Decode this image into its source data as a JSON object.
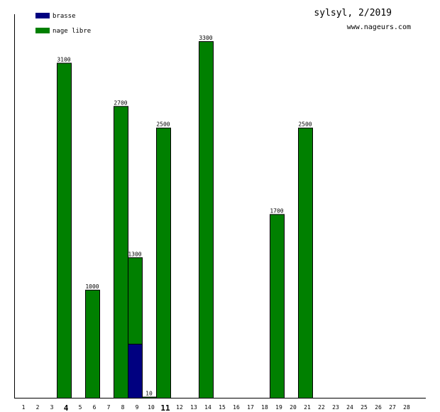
{
  "chart_data": {
    "type": "bar",
    "title": "sylsyl, 2/2019",
    "subtitle": "www.nageurs.com",
    "legend_position": "top-left",
    "categories": [
      "1",
      "2",
      "3",
      "4",
      "5",
      "6",
      "7",
      "8",
      "9",
      "10",
      "11",
      "12",
      "13",
      "14",
      "15",
      "16",
      "17",
      "18",
      "19",
      "20",
      "21",
      "22",
      "23",
      "24",
      "25",
      "26",
      "27",
      "28"
    ],
    "emphasized_categories": [
      "4",
      "11"
    ],
    "ylim": [
      0,
      3550
    ],
    "grid": false,
    "series": [
      {
        "name": "brasse",
        "color": "#000080",
        "values": [
          0,
          0,
          0,
          0,
          0,
          0,
          0,
          0,
          500,
          0,
          0,
          0,
          0,
          0,
          0,
          0,
          0,
          0,
          0,
          0,
          0,
          0,
          0,
          0,
          0,
          0,
          0,
          0
        ]
      },
      {
        "name": "nage libre",
        "color": "#008000",
        "values": [
          0,
          0,
          0,
          3100,
          0,
          1000,
          0,
          2700,
          800,
          10,
          2500,
          0,
          0,
          3300,
          0,
          0,
          0,
          0,
          1700,
          0,
          2500,
          0,
          0,
          0,
          0,
          0,
          0,
          0
        ]
      }
    ],
    "bar_labels": [
      {
        "category": "4",
        "text": "3100"
      },
      {
        "category": "6",
        "text": "1000"
      },
      {
        "category": "8",
        "text": "2700"
      },
      {
        "category": "9",
        "text": "1300"
      },
      {
        "category": "10",
        "text": "10"
      },
      {
        "category": "11",
        "text": "2500"
      },
      {
        "category": "14",
        "text": "3300"
      },
      {
        "category": "19",
        "text": "1700"
      },
      {
        "category": "21",
        "text": "2500"
      }
    ]
  }
}
